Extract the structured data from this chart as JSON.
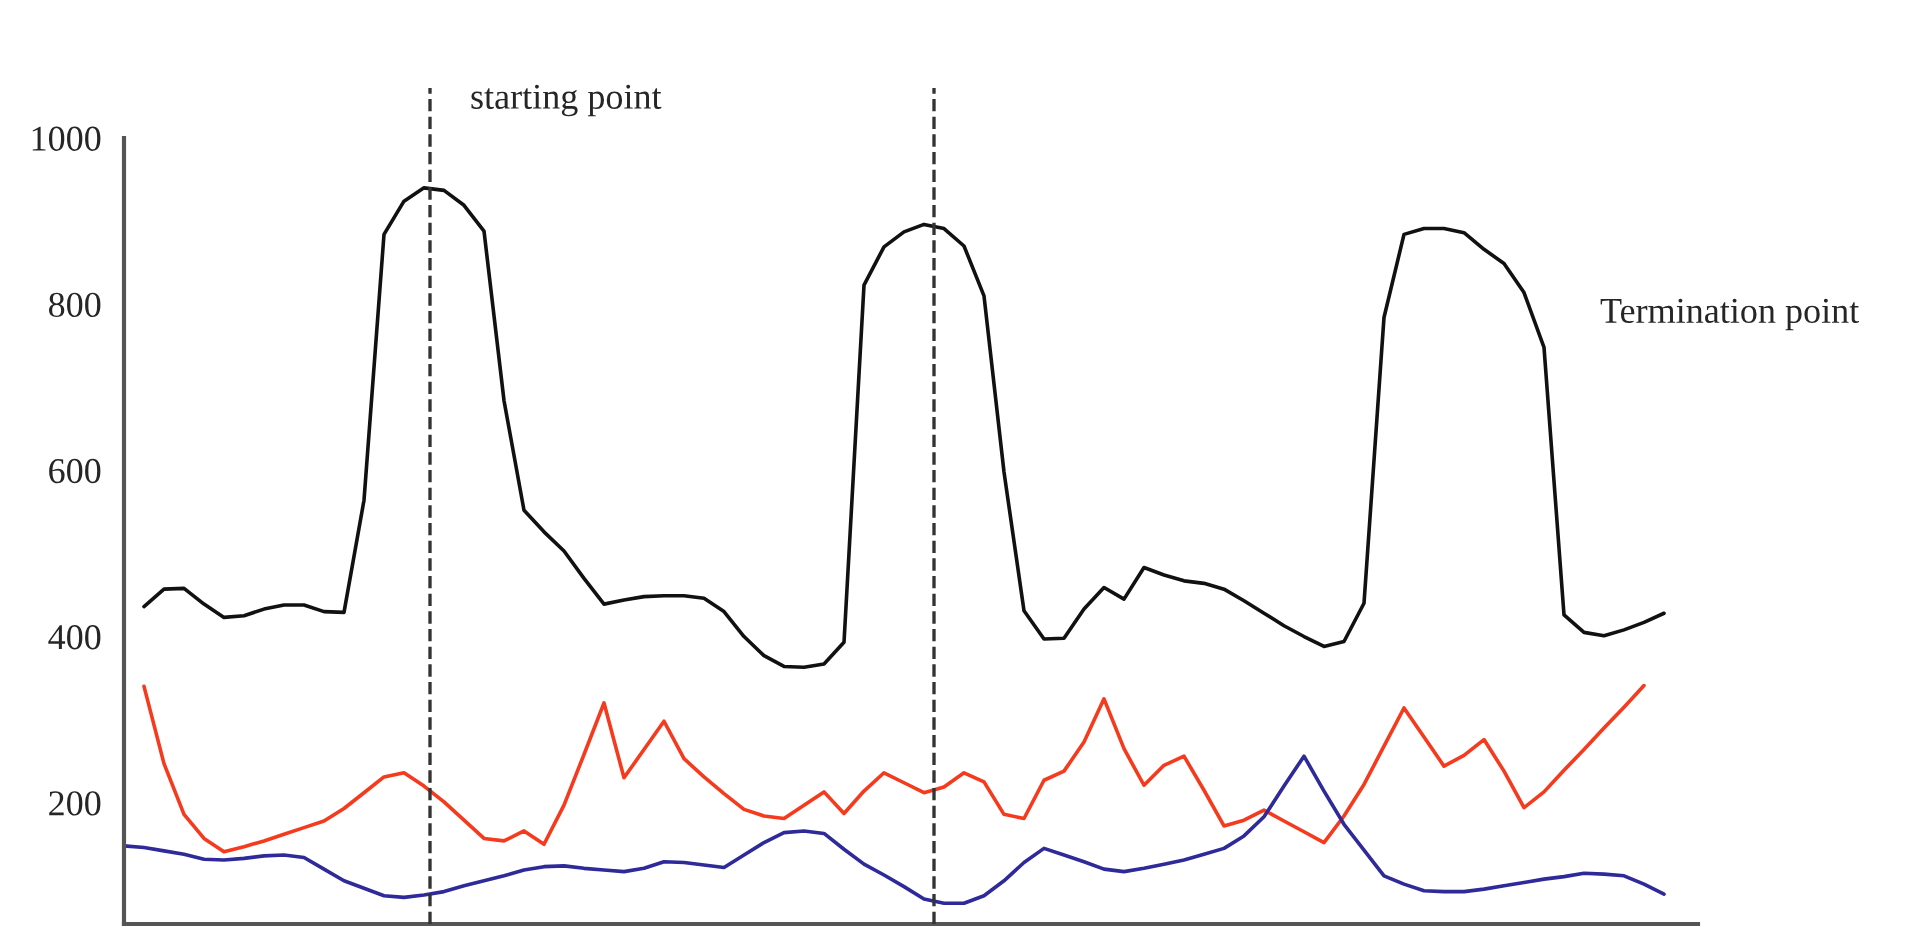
{
  "chart_data": {
    "type": "line",
    "ylim": [
      54,
      1000
    ],
    "yticks": [
      200,
      400,
      600,
      800,
      1000
    ],
    "tick_labels": "y",
    "line_style": "solid",
    "categories": [
      null,
      null,
      null,
      null,
      null,
      null,
      null,
      null,
      null,
      null,
      null,
      null,
      null,
      null,
      null,
      null,
      null,
      null,
      null,
      null,
      null,
      null,
      null,
      null,
      null,
      null,
      null,
      null,
      null,
      null,
      null,
      null,
      null,
      null,
      null,
      null,
      null,
      null,
      null,
      null,
      null,
      null,
      null,
      null,
      null,
      null,
      null,
      null,
      null,
      null,
      null,
      null,
      null,
      null,
      null,
      null,
      null,
      null,
      null,
      null,
      null,
      null,
      null,
      null,
      null,
      null,
      null,
      null,
      null,
      null,
      null,
      null,
      null,
      null,
      null,
      null,
      null,
      null,
      null
    ],
    "series": [
      {
        "color": "#111111",
        "values": [
          null,
          436,
          457,
          458,
          439,
          423,
          425,
          433,
          438,
          438,
          430,
          429,
          564,
          884,
          924,
          940,
          937,
          919,
          888,
          684,
          552,
          526,
          503,
          470,
          439,
          444,
          448,
          449,
          449,
          446,
          430,
          400,
          377,
          364,
          363,
          367,
          393,
          823,
          869,
          887,
          896,
          891,
          870,
          810,
          598,
          431,
          397,
          398,
          433,
          459,
          445,
          483,
          474,
          467,
          464,
          457,
          443,
          428,
          413,
          400,
          388,
          394,
          440,
          784,
          884,
          891,
          891,
          886,
          866,
          849,
          814,
          748,
          426,
          405,
          401,
          408,
          417,
          428,
          null
        ]
      },
      {
        "color": "#f53a1e",
        "values": [
          null,
          340,
          247,
          186,
          157,
          141,
          147,
          154,
          162,
          170,
          178,
          193,
          212,
          231,
          236,
          220,
          201,
          179,
          157,
          154,
          166,
          150,
          197,
          258,
          320,
          230,
          264,
          298,
          253,
          231,
          211,
          192,
          184,
          181,
          197,
          213,
          187,
          214,
          236,
          224,
          212,
          219,
          236,
          225,
          186,
          181,
          227,
          238,
          273,
          325,
          265,
          221,
          245,
          256,
          215,
          172,
          179,
          191,
          178,
          165,
          152,
          184,
          222,
          268,
          314,
          279,
          244,
          257,
          276,
          238,
          194,
          213,
          239,
          264,
          290,
          315,
          341,
          null,
          null
        ]
      },
      {
        "color": "#2e2a9a",
        "values": [
          148,
          146,
          142,
          138,
          132,
          131,
          133,
          136,
          137,
          134,
          120,
          106,
          97,
          88,
          86,
          89,
          93,
          100,
          106,
          112,
          119,
          123,
          124,
          121,
          119,
          117,
          121,
          129,
          128,
          125,
          122,
          137,
          152,
          164,
          166,
          163,
          144,
          126,
          113,
          99,
          84,
          79,
          79,
          88,
          106,
          128,
          145,
          137,
          129,
          120,
          117,
          121,
          126,
          131,
          138,
          145,
          160,
          183,
          220,
          256,
          214,
          174,
          143,
          112,
          102,
          94,
          93,
          93,
          96,
          100,
          104,
          108,
          111,
          115,
          114,
          112,
          102,
          90,
          null
        ]
      }
    ],
    "annotations": [
      "starting point",
      "Termination point"
    ]
  }
}
